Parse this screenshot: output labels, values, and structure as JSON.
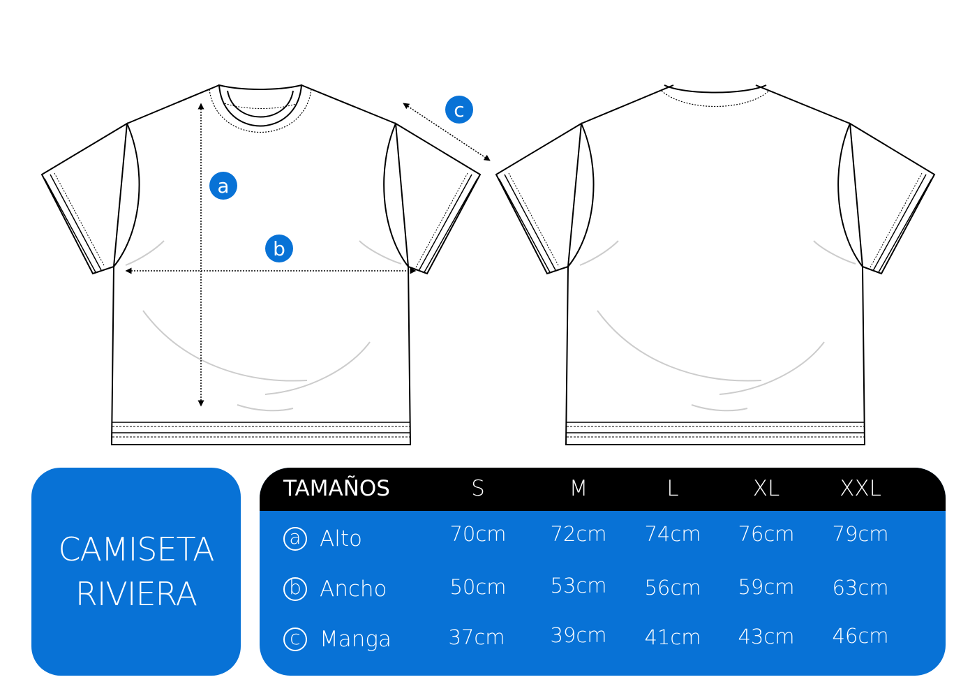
{
  "markers": {
    "a": "a",
    "b": "b",
    "c": "c"
  },
  "colors": {
    "accent": "#0872d6",
    "header": "#000000"
  },
  "title": {
    "line1": "CAMISETA",
    "line2": "RIVIERA"
  },
  "table": {
    "header_label": "TAMAÑOS",
    "sizes": [
      "S",
      "M",
      "L",
      "XL",
      "XXL"
    ],
    "rows": [
      {
        "marker": "a",
        "label": "Alto",
        "values": [
          "70cm",
          "72cm",
          "74cm",
          "76cm",
          "79cm"
        ]
      },
      {
        "marker": "b",
        "label": "Ancho",
        "values": [
          "50cm",
          "53cm",
          "56cm",
          "59cm",
          "63cm"
        ]
      },
      {
        "marker": "c",
        "label": "Manga",
        "values": [
          "37cm",
          "39cm",
          "41cm",
          "43cm",
          "46cm"
        ]
      }
    ]
  }
}
